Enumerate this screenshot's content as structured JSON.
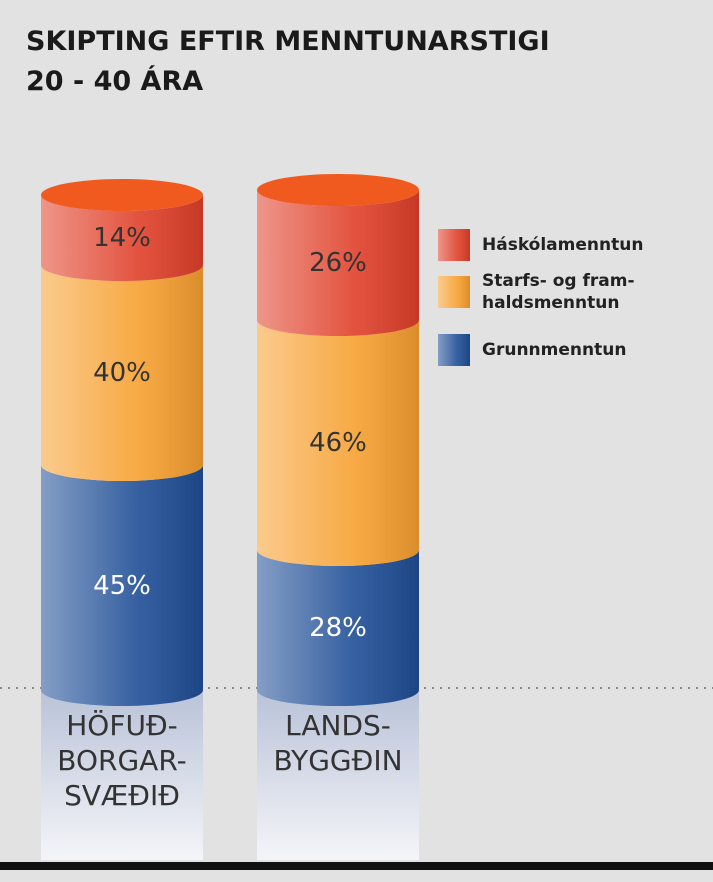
{
  "chart_data": {
    "type": "stacked-cylinder",
    "title": "SKIPTING EFTIR MENNTUNARSTIGI",
    "subtitle": "20 - 40 ÁRA",
    "categories": [
      "HÖFUÐ-\nBORGAR-\nSVÆÐIÐ",
      "LANDS-\nBYGGÐIN"
    ],
    "series": [
      {
        "name": "Grunnmenntun",
        "color": "#1f4e96",
        "values": [
          45,
          28
        ],
        "value_labels": [
          "45%",
          "28%"
        ]
      },
      {
        "name": "Starfs- og fram-\nhaldsmenntun",
        "color": "#f7a030",
        "values": [
          40,
          46
        ],
        "value_labels": [
          "40%",
          "46%"
        ]
      },
      {
        "name": "Háskólamenntun",
        "color": "#e0402a",
        "values": [
          14,
          26
        ],
        "value_labels": [
          "14%",
          "26%"
        ]
      }
    ]
  }
}
